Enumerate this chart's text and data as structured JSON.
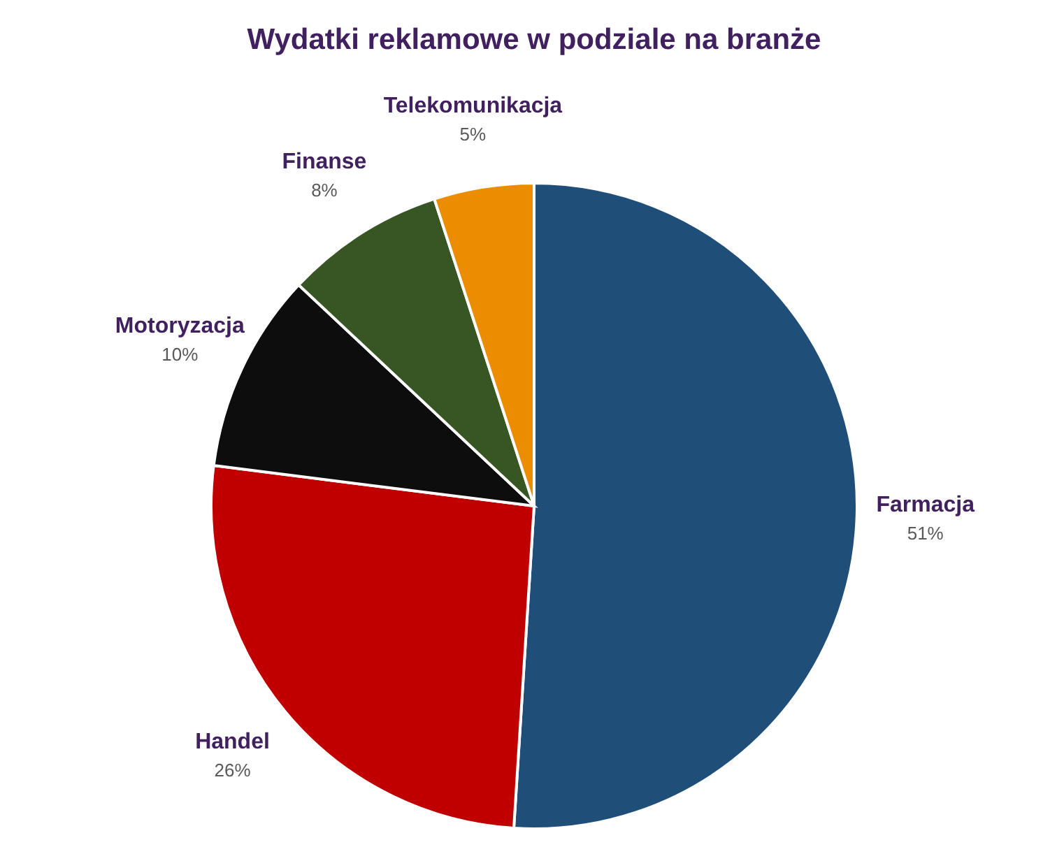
{
  "chart_data": {
    "type": "pie",
    "title": "Wydatki reklamowe w podziale na branże",
    "categories": [
      "Farmacja",
      "Handel",
      "Motoryzacja",
      "Finanse",
      "Telekomunikacja"
    ],
    "values": [
      51,
      26,
      10,
      8,
      5
    ],
    "value_labels": [
      "51%",
      "26%",
      "10%",
      "8%",
      "5%"
    ],
    "colors": [
      "#1f4e79",
      "#c00000",
      "#0d0d0d",
      "#375623",
      "#ec8c00"
    ]
  }
}
